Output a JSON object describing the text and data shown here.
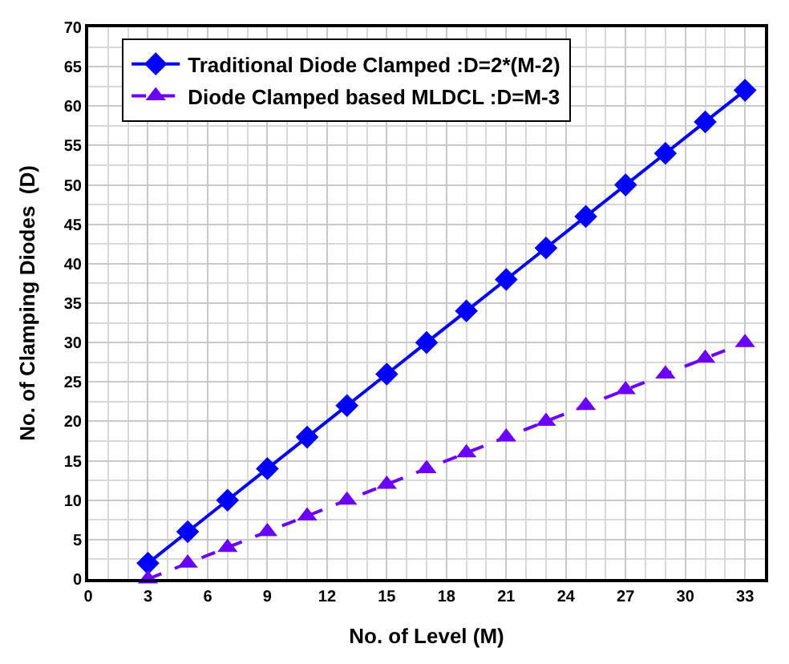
{
  "chart_data": {
    "type": "line",
    "xlabel": "No. of Level (M)",
    "ylabel": "No. of Clamping Diodes  (D)",
    "x": [
      3,
      5,
      7,
      9,
      11,
      13,
      15,
      17,
      19,
      21,
      23,
      25,
      27,
      29,
      31,
      33
    ],
    "series": [
      {
        "name": "Traditional Diode Clamped :D=2*(M-2)",
        "color": "#0000ff",
        "marker": "diamond",
        "line_style": "solid",
        "values": [
          2,
          6,
          10,
          14,
          18,
          22,
          26,
          30,
          34,
          38,
          42,
          46,
          50,
          54,
          58,
          62
        ]
      },
      {
        "name": "Diode Clamped based MLDCL :D=M-3",
        "color": "#6a00ff",
        "marker": "triangle",
        "line_style": "dashed",
        "values": [
          0,
          2,
          4,
          6,
          8,
          10,
          12,
          14,
          16,
          18,
          20,
          22,
          24,
          26,
          28,
          30
        ]
      }
    ],
    "xlim": [
      0,
      34
    ],
    "xticks": [
      0,
      3,
      6,
      9,
      12,
      15,
      18,
      21,
      24,
      27,
      30,
      33
    ],
    "ylim": [
      0,
      70
    ],
    "yticks": [
      0,
      5,
      10,
      15,
      20,
      25,
      30,
      35,
      40,
      45,
      50,
      55,
      60,
      65,
      70
    ],
    "grid": true,
    "legend": "top left"
  }
}
